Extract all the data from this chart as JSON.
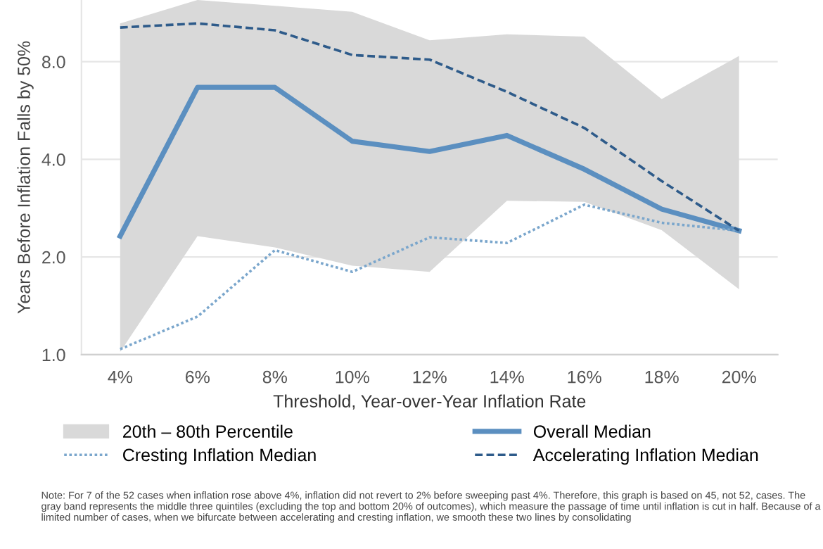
{
  "chart_data": {
    "type": "line",
    "xlabel": "Threshold, Year-over-Year Inflation Rate",
    "ylabel": "Years Before Inflation Falls by 50%",
    "categories": [
      "4%",
      "6%",
      "8%",
      "10%",
      "12%",
      "14%",
      "16%",
      "18%",
      "20%"
    ],
    "series": [
      {
        "name": "20th – 80th Percentile",
        "type": "area",
        "color": "#d9d9d9",
        "values": [
          null,
          null,
          null,
          null,
          null,
          null,
          null,
          null,
          null
        ],
        "lower": [
          1.02,
          2.32,
          2.14,
          1.88,
          1.8,
          2.98,
          2.96,
          2.42,
          1.59
        ],
        "upper": [
          10.5,
          12.4,
          11.9,
          11.4,
          9.31,
          9.72,
          9.56,
          6.14,
          8.34
        ]
      },
      {
        "name": "Overall Median",
        "color": "#5b8fc0",
        "line_style": "solid",
        "values": [
          2.32,
          6.67,
          6.67,
          4.55,
          4.23,
          4.74,
          3.73,
          2.81,
          2.41
        ]
      },
      {
        "name": "Cresting Inflation Median",
        "color": "#7aa6cc",
        "line_style": "dotted",
        "values": [
          1.04,
          1.31,
          2.1,
          1.8,
          2.3,
          2.21,
          2.9,
          2.55,
          2.41
        ]
      },
      {
        "name": "Accelerating Inflation Median",
        "color": "#2e5b8a",
        "line_style": "dashed",
        "values": [
          10.2,
          10.5,
          10.0,
          8.39,
          8.12,
          6.46,
          5.0,
          3.43,
          2.41
        ]
      }
    ],
    "log": "y",
    "ylim": [
      1,
      12.4
    ],
    "yticks": [
      {
        "value": 1,
        "label": "1.0"
      },
      {
        "value": 2,
        "label": "2.0"
      },
      {
        "value": 4,
        "label": "4.0"
      },
      {
        "value": 8,
        "label": "8.0"
      }
    ],
    "grid": "y",
    "legend": "bottom",
    "marker": "none",
    "annotations": [
      "Note: For 7 of the 52 cases when inflation rose above 4%, inflation did not revert to 2% before sweeping past 4%. Therefore, this graph is based on 45, not 52, cases. The gray band represents the middle three quintiles (excluding the top and bottom 20% of outcomes), which measure the passage of time until inflation is cut in half. Because of a limited number of cases, when we bifurcate between accelerating and cresting inflation, we smooth these two lines by consolidating"
    ]
  }
}
